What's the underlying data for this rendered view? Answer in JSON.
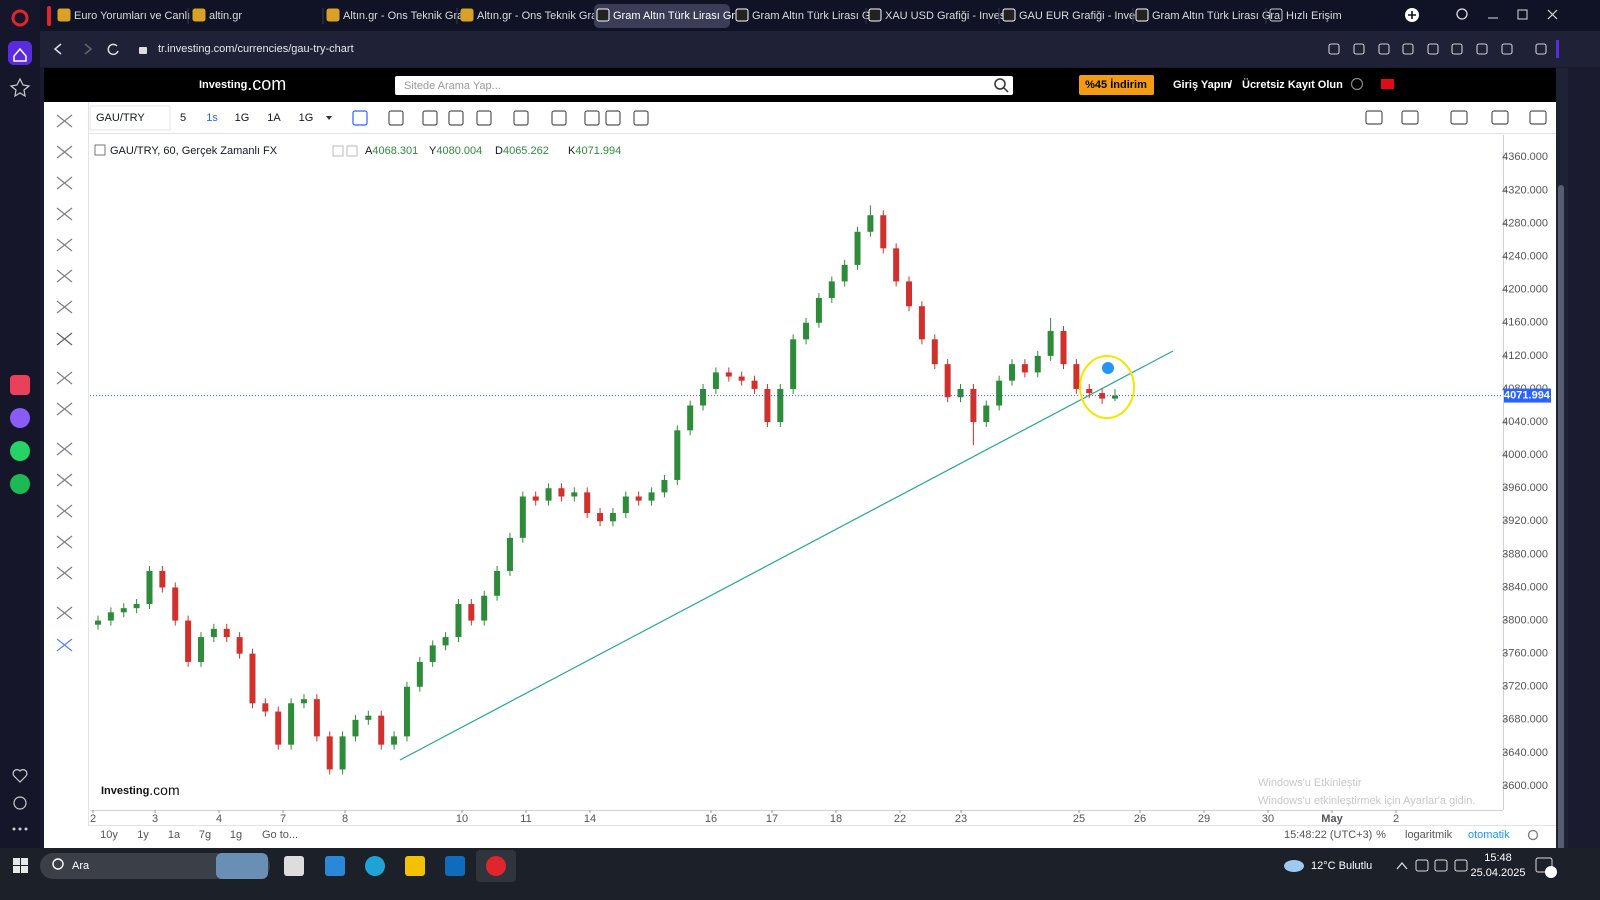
{
  "browser": {
    "tabs": [
      "Euro Yorumları ve Canlı G",
      "altin.gr",
      "Altın.gr - Ons Teknik Grafi",
      "Altın.gr - Ons Teknik Grafi",
      "Gram Altın Türk Lirası Gra",
      "Gram Altın Türk Lirası Gra",
      "XAU USD Grafiği - Invest",
      "GAU EUR Grafiği - Invest",
      "Gram Altın Türk Lirası Gra",
      "Hızlı Erişim"
    ],
    "url": "tr.investing.com/currencies/gau-try-chart"
  },
  "site": {
    "logo": "Investing",
    "logo_suffix": ".com",
    "search_placeholder": "Sitede Arama Yap...",
    "discount": "%45 İndirim",
    "login": "Giriş Yapın",
    "separator": "/",
    "register": "Ücretsiz Kayıt Olun"
  },
  "toolbar": {
    "symbol": "GAU/TRY",
    "intervals": [
      "5",
      "1s",
      "1G",
      "1A",
      "1G"
    ]
  },
  "chart_data": {
    "type": "candlestick",
    "title": "GAU/TRY, 60, Gerçek Zamanlı FX",
    "ohlc_labels": [
      "A",
      "Y",
      "D",
      "K"
    ],
    "up_color": "#2e8b3a",
    "down_color": "#d0312d",
    "trend_color": "#26a69a",
    "ohlc": [
      [
        3795,
        3806,
        3789,
        3800
      ],
      [
        3800,
        3816,
        3794,
        3810
      ],
      [
        3810,
        3821,
        3804,
        3815
      ],
      [
        3815,
        3826,
        3809,
        3820
      ],
      [
        3820,
        3866,
        3814,
        3860
      ],
      [
        3860,
        3866,
        3834,
        3840
      ],
      [
        3840,
        3846,
        3794,
        3800
      ],
      [
        3800,
        3806,
        3744,
        3750
      ],
      [
        3750,
        3786,
        3744,
        3780
      ],
      [
        3780,
        3796,
        3774,
        3790
      ],
      [
        3790,
        3796,
        3774,
        3780
      ],
      [
        3780,
        3786,
        3754,
        3760
      ],
      [
        3760,
        3766,
        3694,
        3700
      ],
      [
        3700,
        3706,
        3684,
        3690
      ],
      [
        3690,
        3696,
        3644,
        3650
      ],
      [
        3650,
        3706,
        3644,
        3700
      ],
      [
        3700,
        3711,
        3694,
        3705
      ],
      [
        3705,
        3711,
        3654,
        3660
      ],
      [
        3660,
        3666,
        3614,
        3620
      ],
      [
        3620,
        3666,
        3614,
        3660
      ],
      [
        3660,
        3686,
        3654,
        3680
      ],
      [
        3680,
        3691,
        3674,
        3685
      ],
      [
        3685,
        3691,
        3644,
        3650
      ],
      [
        3650,
        3666,
        3644,
        3660
      ],
      [
        3660,
        3726,
        3654,
        3720
      ],
      [
        3720,
        3756,
        3714,
        3750
      ],
      [
        3750,
        3776,
        3744,
        3770
      ],
      [
        3770,
        3786,
        3764,
        3780
      ],
      [
        3780,
        3826,
        3774,
        3820
      ],
      [
        3820,
        3826,
        3794,
        3800
      ],
      [
        3800,
        3836,
        3794,
        3830
      ],
      [
        3830,
        3866,
        3824,
        3860
      ],
      [
        3860,
        3906,
        3854,
        3900
      ],
      [
        3900,
        3956,
        3894,
        3950
      ],
      [
        3950,
        3956,
        3939,
        3945
      ],
      [
        3945,
        3966,
        3939,
        3960
      ],
      [
        3960,
        3966,
        3944,
        3950
      ],
      [
        3950,
        3961,
        3944,
        3955
      ],
      [
        3955,
        3961,
        3924,
        3930
      ],
      [
        3930,
        3936,
        3914,
        3920
      ],
      [
        3920,
        3936,
        3914,
        3930
      ],
      [
        3930,
        3956,
        3924,
        3950
      ],
      [
        3950,
        3956,
        3939,
        3945
      ],
      [
        3945,
        3961,
        3939,
        3955
      ],
      [
        3955,
        3976,
        3949,
        3970
      ],
      [
        3970,
        4036,
        3964,
        4030
      ],
      [
        4030,
        4066,
        4024,
        4060
      ],
      [
        4060,
        4086,
        4054,
        4080
      ],
      [
        4080,
        4106,
        4074,
        4100
      ],
      [
        4100,
        4106,
        4089,
        4095
      ],
      [
        4095,
        4101,
        4084,
        4090
      ],
      [
        4090,
        4096,
        4074,
        4080
      ],
      [
        4080,
        4086,
        4034,
        4040
      ],
      [
        4040,
        4086,
        4034,
        4080
      ],
      [
        4080,
        4146,
        4074,
        4140
      ],
      [
        4140,
        4166,
        4134,
        4160
      ],
      [
        4160,
        4196,
        4154,
        4190
      ],
      [
        4190,
        4216,
        4184,
        4210
      ],
      [
        4210,
        4236,
        4204,
        4230
      ],
      [
        4230,
        4276,
        4224,
        4270
      ],
      [
        4270,
        4302,
        4264,
        4290
      ],
      [
        4290,
        4296,
        4244,
        4250
      ],
      [
        4250,
        4256,
        4204,
        4210
      ],
      [
        4210,
        4216,
        4174,
        4180
      ],
      [
        4180,
        4186,
        4134,
        4140
      ],
      [
        4140,
        4146,
        4104,
        4110
      ],
      [
        4110,
        4116,
        4064,
        4070
      ],
      [
        4070,
        4086,
        4064,
        4080
      ],
      [
        4080,
        4086,
        4012,
        4040
      ],
      [
        4040,
        4066,
        4034,
        4060
      ],
      [
        4060,
        4096,
        4054,
        4090
      ],
      [
        4090,
        4116,
        4084,
        4110
      ],
      [
        4110,
        4116,
        4094,
        4100
      ],
      [
        4100,
        4126,
        4094,
        4120
      ],
      [
        4120,
        4166,
        4114,
        4150
      ],
      [
        4150,
        4156,
        4104,
        4110
      ],
      [
        4110,
        4116,
        4074,
        4080
      ],
      [
        4080,
        4086,
        4069,
        4075
      ],
      [
        4075,
        4081,
        4062,
        4068.301
      ],
      [
        4068.301,
        4080.004,
        4065.262,
        4071.994
      ]
    ],
    "ylim": [
      3571,
      4387
    ],
    "yticks": [
      {
        "value": 3600,
        "label": "3600.000"
      },
      {
        "value": 3640,
        "label": "3640.000"
      },
      {
        "value": 3680,
        "label": "3680.000"
      },
      {
        "value": 3720,
        "label": "3720.000"
      },
      {
        "value": 3760,
        "label": "3760.000"
      },
      {
        "value": 3800,
        "label": "3800.000"
      },
      {
        "value": 3840,
        "label": "3840.000"
      },
      {
        "value": 3880,
        "label": "3880.000"
      },
      {
        "value": 3920,
        "label": "3920.000"
      },
      {
        "value": 3960,
        "label": "3960.000"
      },
      {
        "value": 4000,
        "label": "4000.000"
      },
      {
        "value": 4040,
        "label": "4040.000"
      },
      {
        "value": 4080,
        "label": "4080.000"
      },
      {
        "value": 4120,
        "label": "4120.000"
      },
      {
        "value": 4160,
        "label": "4160.000"
      },
      {
        "value": 4200,
        "label": "4200.000"
      },
      {
        "value": 4240,
        "label": "4240.000"
      },
      {
        "value": 4280,
        "label": "4280.000"
      },
      {
        "value": 4320,
        "label": "4320.000"
      },
      {
        "value": 4360,
        "label": "4360.000"
      }
    ],
    "grid": false,
    "x_labels": [
      "2",
      "3",
      "4",
      "7",
      "8",
      "10",
      "11",
      "14",
      "16",
      "17",
      "18",
      "22",
      "23",
      "25",
      "26",
      "29",
      "30",
      "May",
      "2"
    ],
    "watermark": "Investing",
    "watermark_suffix": ".com"
  },
  "bottom_bar": {
    "ranges": [
      "10y",
      "1y",
      "1a",
      "7g",
      "1g"
    ],
    "goto": "Go to...",
    "clock": "15:48:22 (UTC+3)",
    "percent": "%",
    "log": "logaritmik",
    "auto": "otomatik"
  },
  "activation": {
    "title": "Windows'u Etkinleştir",
    "subtitle": "Windows'u etkinleştirmek için Ayarlar'a gidin."
  },
  "taskbar": {
    "search": "Ara",
    "weather": "12°C  Bulutlu",
    "time": "15:48",
    "date": "25.04.2025"
  }
}
